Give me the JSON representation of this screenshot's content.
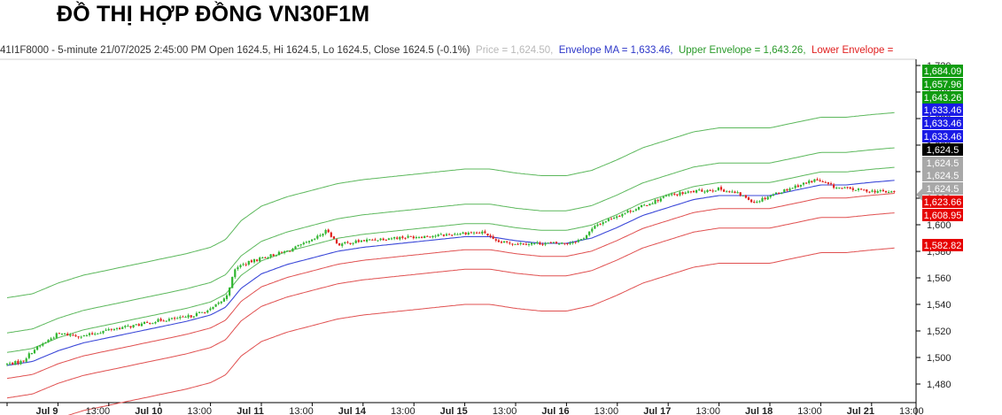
{
  "title": "ĐỒ THỊ HỢP ĐỒNG VN30F1M",
  "legend": {
    "symbol_text": "41I1F8000 - 5-minute 21/07/2025 2:45:00 PM Open 1624.5, Hi 1624.5, Lo 1624.5, Close 1624.5 (-0.1%)",
    "price_text": "Price = 1,624.50,",
    "ma_text": "Envelope MA = 1,633.46,",
    "upper_text": "Upper Envelope = 1,643.26,",
    "lower_text": "Lower Envelope ="
  },
  "colors": {
    "candle_up": "#2fb52f",
    "candle_down": "#e0201c",
    "ma": "#3a47d8",
    "upper": "#5cb85c",
    "lower": "#e05050",
    "label_green": "#109c10",
    "label_blue": "#1a1ae6",
    "label_black": "#000000",
    "label_gray": "#a8a8a8",
    "label_red": "#e60000"
  },
  "chart_data": {
    "type": "line",
    "x_tick_labels": [
      "Jul 9",
      "13:00",
      "Jul 10",
      "13:00",
      "Jul 11",
      "13:00",
      "Jul 14",
      "13:00",
      "Jul 15",
      "13:00",
      "Jul 16",
      "13:00",
      "Jul 17",
      "13:00",
      "Jul 18",
      "13:00",
      "Jul 21",
      "13:00"
    ],
    "y_tick_labels": [
      "1,720",
      "1,700",
      "1,680",
      "1,660",
      "1,640",
      "1,620",
      "1,600",
      "1,580",
      "1,560",
      "1,540",
      "1,520",
      "1,500",
      "1,480"
    ],
    "ylim": [
      1470,
      1722
    ],
    "x_index_range": [
      0,
      17.6
    ],
    "close_key_points": [
      [
        0,
        1495
      ],
      [
        0.3,
        1497
      ],
      [
        0.5,
        1505
      ],
      [
        1,
        1518
      ],
      [
        1.5,
        1516
      ],
      [
        2,
        1521
      ],
      [
        2.5,
        1524
      ],
      [
        3,
        1528
      ],
      [
        3.5,
        1530
      ],
      [
        4,
        1536
      ],
      [
        4.3,
        1545
      ],
      [
        4.5,
        1568
      ],
      [
        5,
        1575
      ],
      [
        5.5,
        1580
      ],
      [
        6,
        1588
      ],
      [
        6.3,
        1596
      ],
      [
        6.5,
        1585
      ],
      [
        7,
        1588
      ],
      [
        7.5,
        1590
      ],
      [
        8,
        1591
      ],
      [
        8.5,
        1592
      ],
      [
        9,
        1594
      ],
      [
        9.4,
        1594
      ],
      [
        9.6,
        1587
      ],
      [
        10,
        1586
      ],
      [
        10.5,
        1586
      ],
      [
        11,
        1586
      ],
      [
        11.3,
        1589
      ],
      [
        11.6,
        1600
      ],
      [
        12,
        1607
      ],
      [
        12.5,
        1614
      ],
      [
        13,
        1622
      ],
      [
        13.5,
        1625
      ],
      [
        14,
        1627
      ],
      [
        14.4,
        1623
      ],
      [
        14.7,
        1617
      ],
      [
        15,
        1622
      ],
      [
        15.5,
        1629
      ],
      [
        15.9,
        1634
      ],
      [
        16.3,
        1628
      ],
      [
        16.8,
        1626
      ],
      [
        17.2,
        1625
      ],
      [
        17.45,
        1624.5
      ]
    ],
    "ma_key_points": [
      [
        0,
        1494
      ],
      [
        0.5,
        1497
      ],
      [
        1,
        1505
      ],
      [
        1.5,
        1511
      ],
      [
        2,
        1515
      ],
      [
        2.5,
        1519
      ],
      [
        3,
        1523
      ],
      [
        3.5,
        1527
      ],
      [
        4,
        1532
      ],
      [
        4.3,
        1538
      ],
      [
        4.6,
        1552
      ],
      [
        5,
        1563
      ],
      [
        5.5,
        1570
      ],
      [
        6,
        1575
      ],
      [
        6.5,
        1580
      ],
      [
        7,
        1583
      ],
      [
        7.5,
        1585
      ],
      [
        8,
        1587
      ],
      [
        8.5,
        1589
      ],
      [
        9,
        1591
      ],
      [
        9.5,
        1591
      ],
      [
        10,
        1588
      ],
      [
        10.5,
        1586
      ],
      [
        11,
        1586
      ],
      [
        11.5,
        1590
      ],
      [
        12,
        1598
      ],
      [
        12.5,
        1607
      ],
      [
        13,
        1613
      ],
      [
        13.5,
        1619
      ],
      [
        14,
        1622
      ],
      [
        14.5,
        1622
      ],
      [
        15,
        1622
      ],
      [
        15.5,
        1626
      ],
      [
        16,
        1630
      ],
      [
        16.5,
        1630
      ],
      [
        17,
        1632
      ],
      [
        17.45,
        1633.46
      ]
    ],
    "band_values": {
      "upper_offsets": [
        9.8,
        24.5,
        51
      ],
      "lower_offsets": [
        -9.8,
        -24.5,
        -51
      ]
    },
    "right_axis_labels": [
      {
        "value": "1,684.09",
        "color": "label_green"
      },
      {
        "value": "1,657.96",
        "color": "label_green"
      },
      {
        "value": "1,643.26",
        "color": "label_green"
      },
      {
        "value": "1,633.46",
        "color": "label_blue"
      },
      {
        "value": "1,633.46",
        "color": "label_blue"
      },
      {
        "value": "1,633.46",
        "color": "label_blue"
      },
      {
        "value": "1,624.5",
        "color": "label_black"
      },
      {
        "value": "1,624.5",
        "color": "label_gray"
      },
      {
        "value": "1,624.5",
        "color": "label_gray"
      },
      {
        "value": "1,624.5",
        "color": "label_gray"
      },
      {
        "value": "1,623.66",
        "color": "label_red"
      },
      {
        "value": "1,608.95",
        "color": "label_red"
      },
      {
        "value": "1,582.82",
        "color": "label_red"
      }
    ]
  }
}
